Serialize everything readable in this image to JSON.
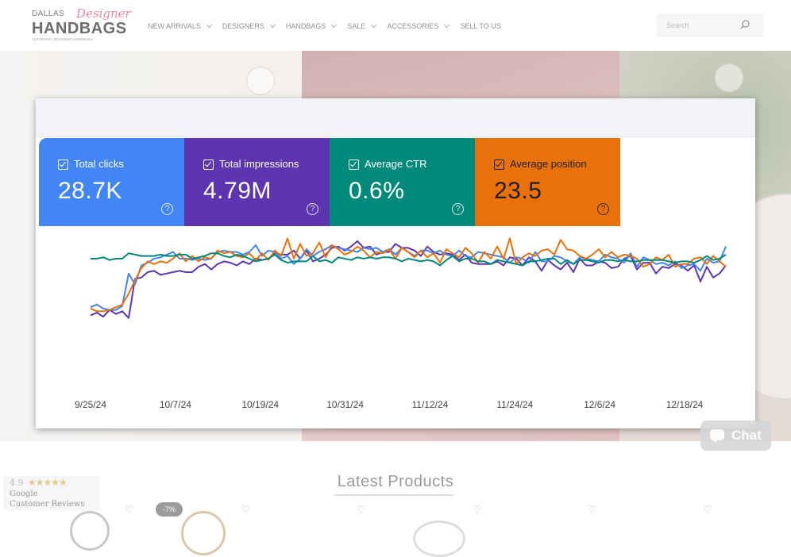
{
  "header": {
    "logo": {
      "line1": "DALLAS",
      "line1_script": "Designer",
      "line2": "HANDBAGS",
      "line3": "AUTHENTIC DESIGNER HANDBAGS"
    },
    "nav": [
      "NEW ARRIVALS",
      "DESIGNERS",
      "HANDBAGS",
      "SALE",
      "ACCESSORIES",
      "SELL TO US"
    ],
    "search_placeholder": "Search"
  },
  "metrics": {
    "clicks": {
      "label": "Total clicks",
      "value": "28.7K",
      "color": "#4285f4"
    },
    "impressions": {
      "label": "Total impressions",
      "value": "4.79M",
      "color": "#5e35b1"
    },
    "ctr": {
      "label": "Average CTR",
      "value": "0.6%",
      "color": "#00897b"
    },
    "position": {
      "label": "Average position",
      "value": "23.5",
      "color": "#e8710a"
    }
  },
  "chart_data": {
    "type": "line",
    "x_tick_labels": [
      "9/25/24",
      "10/7/24",
      "10/19/24",
      "10/31/24",
      "11/12/24",
      "11/24/24",
      "12/6/24",
      "12/18/24"
    ],
    "series": [
      {
        "name": "Total impressions",
        "color": "#5e35b1",
        "values": [
          0.62,
          0.6,
          0.63,
          0.58,
          0.61,
          0.59,
          0.64,
          0.35,
          0.34,
          0.3,
          0.29,
          0.32,
          0.31,
          0.3,
          0.29,
          0.3,
          0.3,
          0.26,
          0.24,
          0.28,
          0.24,
          0.22,
          0.23,
          0.25,
          0.22,
          0.24,
          0.2,
          0.21,
          0.2,
          0.16,
          0.17,
          0.17,
          0.14,
          0.2,
          0.14,
          0.22,
          0.2,
          0.17,
          0.12,
          0.11,
          0.14,
          0.11,
          0.07,
          0.12,
          0.11,
          0.17,
          0.15,
          0.15,
          0.09,
          0.12,
          0.12,
          0.14,
          0.18,
          0.11,
          0.15,
          0.17,
          0.16,
          0.17,
          0.21,
          0.17,
          0.23,
          0.24,
          0.24,
          0.24,
          0.22,
          0.25,
          0.19,
          0.2,
          0.25,
          0.19,
          0.22,
          0.29,
          0.21,
          0.25,
          0.28,
          0.23,
          0.3,
          0.2,
          0.25,
          0.25,
          0.22,
          0.23,
          0.27,
          0.26,
          0.2,
          0.18,
          0.28,
          0.23,
          0.23,
          0.31,
          0.26,
          0.27,
          0.24,
          0.25,
          0.29,
          0.25,
          0.37,
          0.26,
          0.34,
          0.31,
          0.25
        ]
      },
      {
        "name": "Total clicks",
        "color": "#4285f4",
        "values": [
          0.56,
          0.54,
          0.57,
          0.58,
          0.58,
          0.55,
          0.31,
          0.39,
          0.25,
          0.23,
          0.2,
          0.19,
          0.17,
          0.15,
          0.2,
          0.2,
          0.21,
          0.2,
          0.21,
          0.2,
          0.15,
          0.14,
          0.15,
          0.15,
          0.17,
          0.15,
          0.1,
          0.18,
          0.14,
          0.15,
          0.2,
          0.18,
          0.24,
          0.2,
          0.13,
          0.18,
          0.15,
          0.13,
          0.1,
          0.12,
          0.13,
          0.14,
          0.15,
          0.12,
          0.13,
          0.12,
          0.15,
          0.13,
          0.17,
          0.12,
          0.15,
          0.18,
          0.14,
          0.14,
          0.16,
          0.14,
          0.17,
          0.18,
          0.14,
          0.18,
          0.19,
          0.15,
          0.16,
          0.17,
          0.18,
          0.19,
          0.23,
          0.19,
          0.2,
          0.23,
          0.15,
          0.22,
          0.22,
          0.18,
          0.19,
          0.22,
          0.24,
          0.19,
          0.2,
          0.21,
          0.22,
          0.17,
          0.19,
          0.2,
          0.23,
          0.16,
          0.26,
          0.19,
          0.21,
          0.24,
          0.23,
          0.25,
          0.22,
          0.27,
          0.25,
          0.24,
          0.29,
          0.2,
          0.23,
          0.22,
          0.11
        ]
      }
    ],
    "series_secondary": [
      {
        "name": "Average position",
        "color": "#e8710a",
        "values": [
          0.57,
          0.59,
          0.59,
          0.58,
          0.56,
          0.54,
          0.46,
          0.36,
          0.27,
          0.22,
          0.24,
          0.22,
          0.23,
          0.2,
          0.16,
          0.22,
          0.18,
          0.22,
          0.19,
          0.2,
          0.14,
          0.16,
          0.15,
          0.18,
          0.19,
          0.16,
          0.21,
          0.16,
          0.21,
          0.14,
          0.18,
          0.05,
          0.2,
          0.09,
          0.18,
          0.16,
          0.08,
          0.19,
          0.1,
          0.13,
          0.17,
          0.15,
          0.11,
          0.14,
          0.19,
          0.15,
          0.16,
          0.13,
          0.2,
          0.12,
          0.15,
          0.19,
          0.14,
          0.19,
          0.16,
          0.23,
          0.13,
          0.16,
          0.19,
          0.12,
          0.16,
          0.23,
          0.15,
          0.2,
          0.11,
          0.2,
          0.05,
          0.24,
          0.19,
          0.16,
          0.18,
          0.14,
          0.13,
          0.17,
          0.06,
          0.13,
          0.14,
          0.18,
          0.2,
          0.17,
          0.13,
          0.19,
          0.15,
          0.19,
          0.17,
          0.18,
          0.2,
          0.26,
          0.24,
          0.19,
          0.21,
          0.17,
          0.26,
          0.24,
          0.24,
          0.2,
          0.19,
          0.24,
          0.18,
          0.22,
          0.26
        ]
      },
      {
        "name": "Average CTR",
        "color": "#00897b",
        "values": [
          0.2,
          0.2,
          0.19,
          0.21,
          0.2,
          0.2,
          0.16,
          0.17,
          0.18,
          0.18,
          0.18,
          0.17,
          0.18,
          0.18,
          0.17,
          0.17,
          0.2,
          0.19,
          0.18,
          0.16,
          0.16,
          0.18,
          0.19,
          0.17,
          0.18,
          0.2,
          0.22,
          0.21,
          0.2,
          0.17,
          0.21,
          0.23,
          0.22,
          0.22,
          0.22,
          0.18,
          0.22,
          0.21,
          0.23,
          0.19,
          0.2,
          0.21,
          0.19,
          0.2,
          0.19,
          0.2,
          0.19,
          0.19,
          0.2,
          0.22,
          0.2,
          0.21,
          0.22,
          0.21,
          0.22,
          0.25,
          0.21,
          0.18,
          0.22,
          0.2,
          0.2,
          0.22,
          0.22,
          0.24,
          0.21,
          0.22,
          0.23,
          0.24,
          0.25,
          0.22,
          0.22,
          0.21,
          0.2,
          0.2,
          0.24,
          0.21,
          0.24,
          0.21,
          0.21,
          0.22,
          0.23,
          0.21,
          0.21,
          0.22,
          0.21,
          0.22,
          0.22,
          0.21,
          0.21,
          0.21,
          0.21,
          0.22,
          0.23,
          0.22,
          0.22,
          0.23,
          0.21,
          0.18,
          0.21,
          0.2,
          0.17
        ]
      }
    ]
  },
  "chat": {
    "label": "Chat"
  },
  "latest": {
    "title": "Latest Products"
  },
  "reviews": {
    "score": "4.9",
    "stars": "★★★★★",
    "source": "Google",
    "caption": "Customer Reviews"
  },
  "products": {
    "badge": "-7%"
  }
}
